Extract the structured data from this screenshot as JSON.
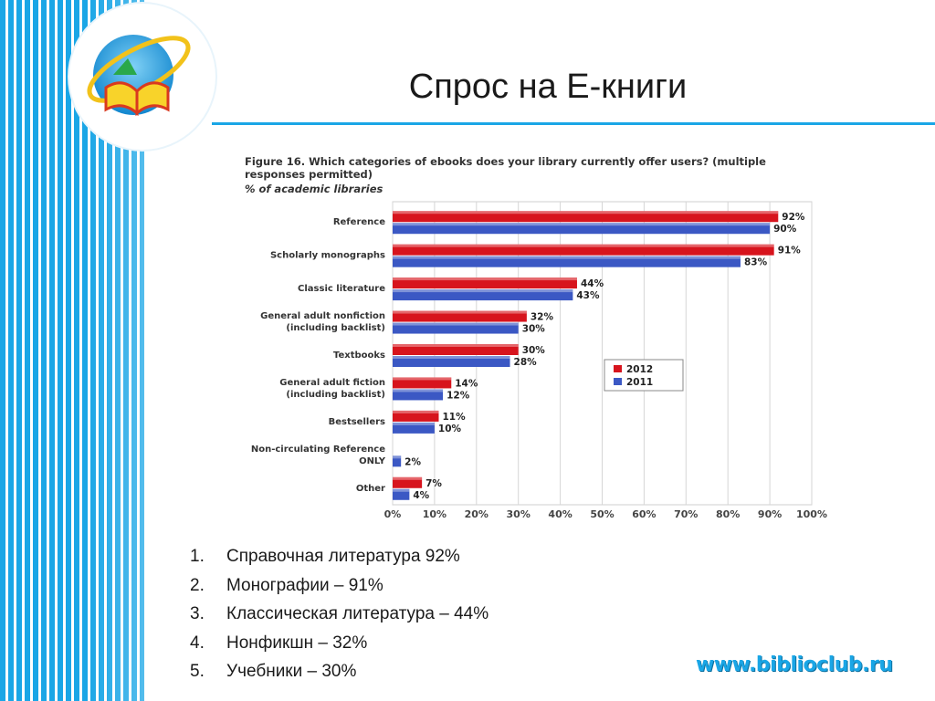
{
  "slide": {
    "title": "Спрос на Е-книги",
    "website": "www.biblioclub.ru"
  },
  "figure": {
    "title_line1": "Figure 16. Which categories of ebooks does your library currently offer users? (multiple",
    "title_line2": "responses permitted)",
    "subtitle": "% of academic libraries"
  },
  "chart_data": {
    "type": "bar",
    "orientation": "horizontal",
    "categories": [
      [
        "Reference"
      ],
      [
        "Scholarly monographs"
      ],
      [
        "Classic literature"
      ],
      [
        "General adult nonfiction",
        "(including backlist)"
      ],
      [
        "Textbooks"
      ],
      [
        "General adult fiction",
        "(including backlist)"
      ],
      [
        "Bestsellers"
      ],
      [
        "Non-circulating Reference",
        "ONLY"
      ],
      [
        "Other"
      ]
    ],
    "series": [
      {
        "name": "2012",
        "color": "#d7141d",
        "values": [
          92,
          91,
          44,
          32,
          30,
          14,
          11,
          null,
          7
        ]
      },
      {
        "name": "2011",
        "color": "#3b58c4",
        "values": [
          90,
          83,
          43,
          30,
          28,
          12,
          10,
          2,
          4
        ]
      }
    ],
    "xlim": [
      0,
      100
    ],
    "x_ticks": [
      "0%",
      "10%",
      "20%",
      "30%",
      "40%",
      "50%",
      "60%",
      "70%",
      "80%",
      "90%",
      "100%"
    ],
    "value_suffix": "%",
    "grid": true,
    "legend_position": "right"
  },
  "list": [
    {
      "num": "1.",
      "text": "Справочная литература 92%"
    },
    {
      "num": "2.",
      "text": "Монографии – 91%"
    },
    {
      "num": "3.",
      "text": "Классическая литература – 44%"
    },
    {
      "num": "4.",
      "text": "Нонфикшн – 32%"
    },
    {
      "num": "5.",
      "text": "Учебники – 30%"
    }
  ]
}
